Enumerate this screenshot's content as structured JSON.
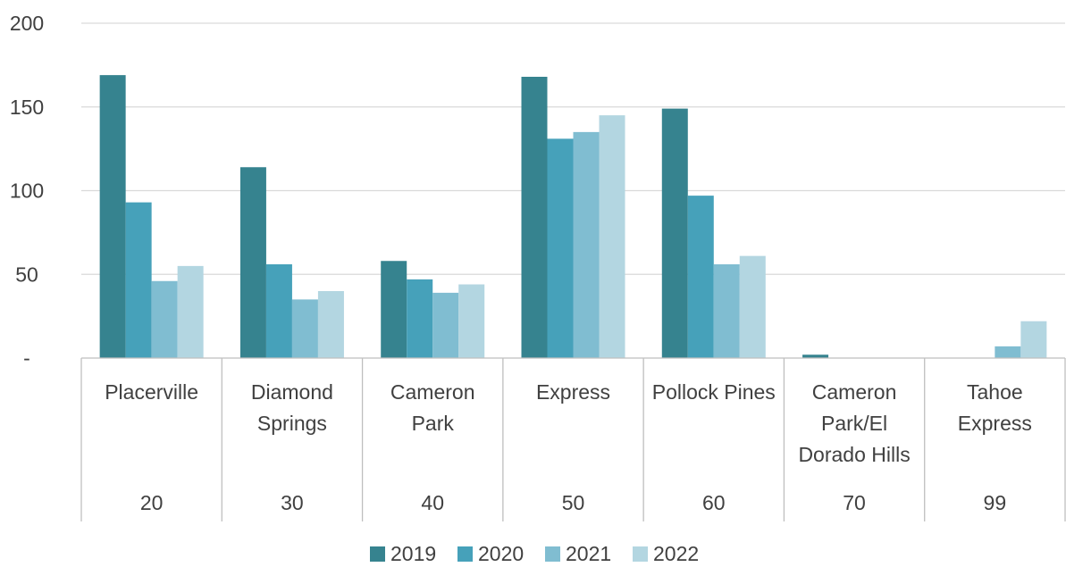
{
  "chart_data": {
    "type": "bar",
    "title": "",
    "xlabel": "",
    "ylabel": "",
    "ylim": [
      0,
      200
    ],
    "y_ticks": [
      0,
      50,
      100,
      150,
      200
    ],
    "y_tick_labels": [
      "-",
      "50",
      "100",
      "150",
      "200"
    ],
    "categories": [
      {
        "name_lines": [
          "Placerville"
        ],
        "code": "20"
      },
      {
        "name_lines": [
          "Diamond",
          "Springs"
        ],
        "code": "30"
      },
      {
        "name_lines": [
          "Cameron",
          "Park"
        ],
        "code": "40"
      },
      {
        "name_lines": [
          "Express"
        ],
        "code": "50"
      },
      {
        "name_lines": [
          "Pollock Pines"
        ],
        "code": "60"
      },
      {
        "name_lines": [
          "Cameron",
          "Park/El",
          "Dorado Hills"
        ],
        "code": "70"
      },
      {
        "name_lines": [
          "Tahoe",
          "Express"
        ],
        "code": "99"
      }
    ],
    "series": [
      {
        "name": "2019",
        "color": "#36838f",
        "values": [
          169,
          114,
          58,
          168,
          149,
          2,
          0
        ]
      },
      {
        "name": "2020",
        "color": "#46a1ba",
        "values": [
          93,
          56,
          47,
          131,
          97,
          0,
          0
        ]
      },
      {
        "name": "2021",
        "color": "#80bdd1",
        "values": [
          46,
          35,
          39,
          135,
          56,
          0,
          7
        ]
      },
      {
        "name": "2022",
        "color": "#b3d6e1",
        "values": [
          55,
          40,
          44,
          145,
          61,
          0,
          22
        ]
      }
    ],
    "grid": true,
    "legend_position": "bottom"
  }
}
